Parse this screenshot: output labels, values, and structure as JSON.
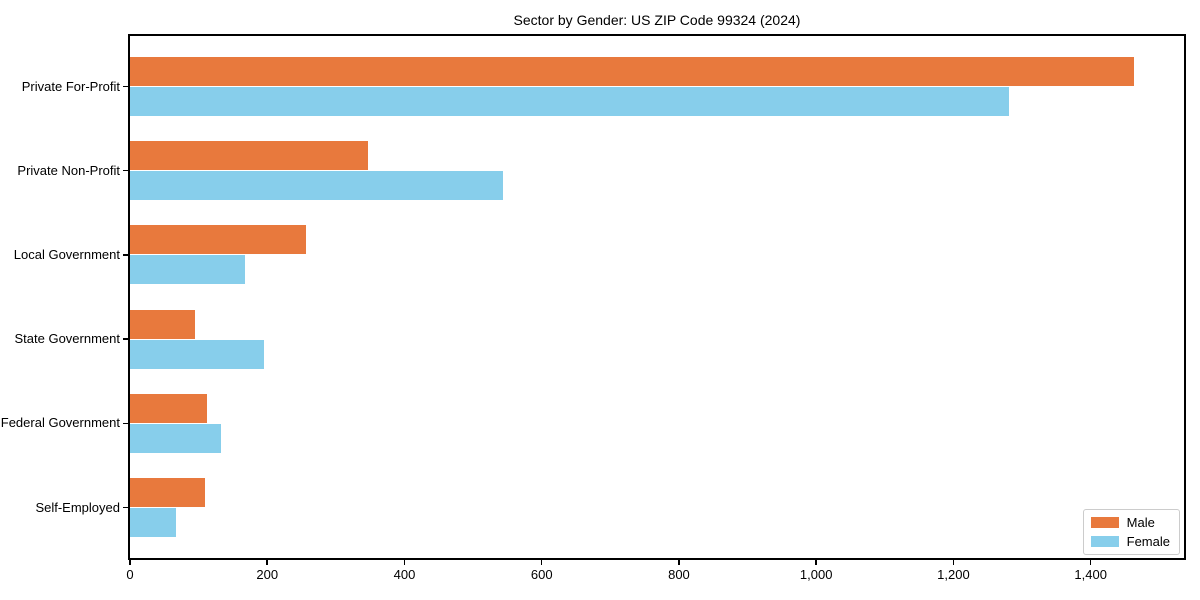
{
  "chart_data": {
    "type": "bar",
    "orientation": "horizontal",
    "title": "Sector by Gender: US ZIP Code 99324 (2024)",
    "categories": [
      "Private For-Profit",
      "Private Non-Profit",
      "Local Government",
      "State Government",
      "Federal Government",
      "Self-Employed"
    ],
    "series": [
      {
        "name": "Male",
        "color": "#E8793D",
        "values": [
          1463,
          347,
          257,
          95,
          112,
          109
        ]
      },
      {
        "name": "Female",
        "color": "#87CEEB",
        "values": [
          1281,
          543,
          167,
          195,
          133,
          67
        ]
      }
    ],
    "xlabel": "",
    "ylabel": "",
    "xlim": [
      0,
      1536
    ],
    "x_ticks": [
      0,
      200,
      400,
      600,
      800,
      1000,
      1200,
      1400
    ],
    "x_tick_labels": [
      "0",
      "200",
      "400",
      "600",
      "800",
      "1,000",
      "1,200",
      "1,400"
    ],
    "grid": false,
    "legend": {
      "position": "lower right"
    },
    "colors": {
      "background": "#ffffff",
      "axis": "#000000",
      "legend_border": "#cccccc"
    }
  }
}
